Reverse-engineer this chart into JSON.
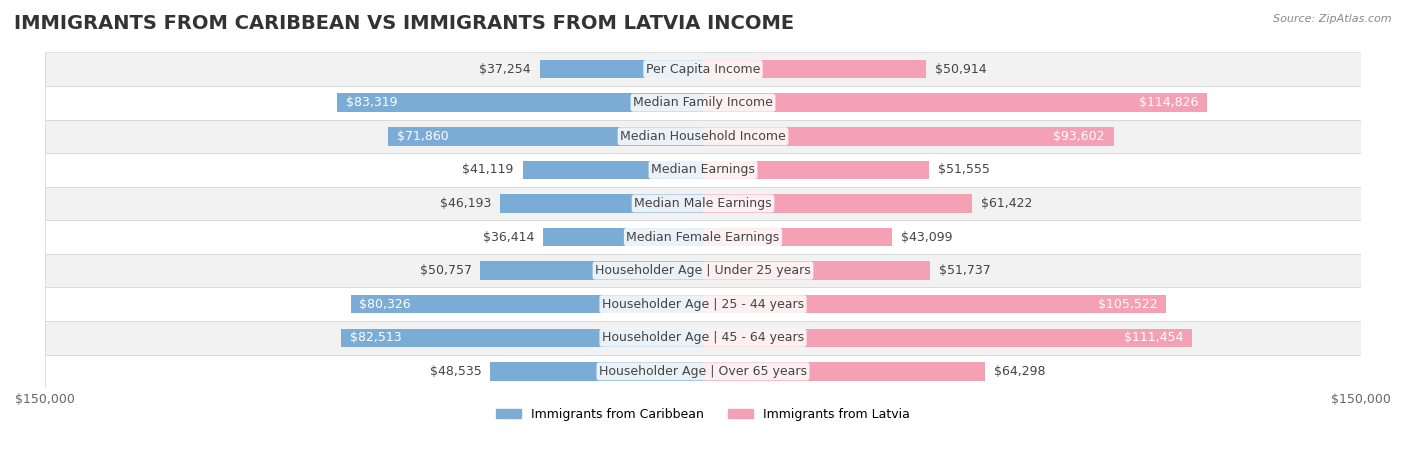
{
  "title": "IMMIGRANTS FROM CARIBBEAN VS IMMIGRANTS FROM LATVIA INCOME",
  "source": "Source: ZipAtlas.com",
  "categories": [
    "Per Capita Income",
    "Median Family Income",
    "Median Household Income",
    "Median Earnings",
    "Median Male Earnings",
    "Median Female Earnings",
    "Householder Age | Under 25 years",
    "Householder Age | 25 - 44 years",
    "Householder Age | 45 - 64 years",
    "Householder Age | Over 65 years"
  ],
  "caribbean_values": [
    37254,
    83319,
    71860,
    41119,
    46193,
    36414,
    50757,
    80326,
    82513,
    48535
  ],
  "latvia_values": [
    50914,
    114826,
    93602,
    51555,
    61422,
    43099,
    51737,
    105522,
    111454,
    64298
  ],
  "caribbean_color": "#7aacd6",
  "latvia_color": "#f4a0b5",
  "caribbean_label": "Immigrants from Caribbean",
  "latvia_label": "Immigrants from Latvia",
  "max_value": 150000,
  "title_fontsize": 14,
  "label_fontsize": 9,
  "tick_fontsize": 9,
  "bar_height": 0.55,
  "background_color": "#ffffff",
  "row_bg_colors": [
    "#f2f2f2",
    "#ffffff"
  ],
  "x_axis_label_left": "$150,000",
  "x_axis_label_right": "$150,000"
}
